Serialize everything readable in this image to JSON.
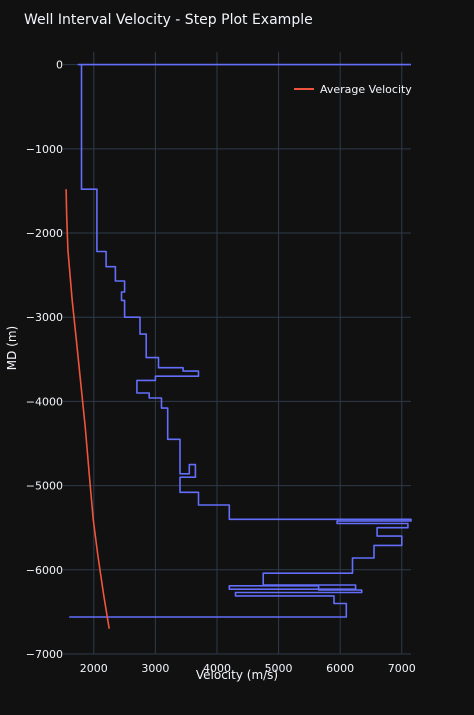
{
  "chart_data": {
    "type": "line",
    "title": "Well Interval Velocity - Step Plot Example",
    "xlabel": "Velocity (m/s)",
    "ylabel": "MD (m)",
    "xlim": [
      1500,
      7150
    ],
    "ylim": [
      -7000,
      150
    ],
    "x_ticks": [
      2000,
      3000,
      4000,
      5000,
      6000,
      7000
    ],
    "y_ticks": [
      0,
      -1000,
      -2000,
      -3000,
      -4000,
      -5000,
      -6000,
      -7000
    ],
    "x_tick_labels": [
      "2000",
      "3000",
      "4000",
      "5000",
      "6000",
      "7000"
    ],
    "y_tick_labels": [
      "0",
      "−1000",
      "−2000",
      "−3000",
      "−4000",
      "−5000",
      "−6000",
      "−7000"
    ],
    "grid": true,
    "legend_position": "top-right",
    "background": "#111111",
    "grid_color": "#2e3a4a",
    "series": [
      {
        "name": "",
        "color": "#636efa",
        "shape": "step",
        "points": [
          [
            7150,
            0
          ],
          [
            1750,
            0
          ],
          [
            1800,
            0
          ],
          [
            1800,
            -1480
          ],
          [
            2050,
            -1480
          ],
          [
            2050,
            -2220
          ],
          [
            2200,
            -2220
          ],
          [
            2200,
            -2400
          ],
          [
            2350,
            -2400
          ],
          [
            2350,
            -2570
          ],
          [
            2500,
            -2570
          ],
          [
            2500,
            -2700
          ],
          [
            2450,
            -2700
          ],
          [
            2450,
            -2800
          ],
          [
            2500,
            -2800
          ],
          [
            2500,
            -3000
          ],
          [
            2750,
            -3000
          ],
          [
            2750,
            -3200
          ],
          [
            2850,
            -3200
          ],
          [
            2850,
            -3480
          ],
          [
            3050,
            -3480
          ],
          [
            3050,
            -3600
          ],
          [
            3450,
            -3600
          ],
          [
            3450,
            -3640
          ],
          [
            3700,
            -3640
          ],
          [
            3700,
            -3700
          ],
          [
            3000,
            -3700
          ],
          [
            3000,
            -3750
          ],
          [
            2700,
            -3750
          ],
          [
            2700,
            -3900
          ],
          [
            2900,
            -3900
          ],
          [
            2900,
            -3960
          ],
          [
            3100,
            -3960
          ],
          [
            3100,
            -4080
          ],
          [
            3200,
            -4080
          ],
          [
            3200,
            -4450
          ],
          [
            3400,
            -4450
          ],
          [
            3400,
            -4860
          ],
          [
            3550,
            -4860
          ],
          [
            3550,
            -4750
          ],
          [
            3650,
            -4750
          ],
          [
            3650,
            -4900
          ],
          [
            3400,
            -4900
          ],
          [
            3400,
            -5080
          ],
          [
            3700,
            -5080
          ],
          [
            3700,
            -5230
          ],
          [
            4200,
            -5230
          ],
          [
            4200,
            -5400
          ],
          [
            7150,
            -5400
          ],
          [
            7150,
            -5420
          ],
          [
            5950,
            -5420
          ],
          [
            5950,
            -5450
          ],
          [
            7100,
            -5450
          ],
          [
            7100,
            -5500
          ],
          [
            6600,
            -5500
          ],
          [
            6600,
            -5600
          ],
          [
            7000,
            -5600
          ],
          [
            7000,
            -5710
          ],
          [
            6550,
            -5710
          ],
          [
            6550,
            -5860
          ],
          [
            6200,
            -5860
          ],
          [
            6200,
            -6040
          ],
          [
            4750,
            -6040
          ],
          [
            4750,
            -6180
          ],
          [
            6250,
            -6180
          ],
          [
            6250,
            -6230
          ],
          [
            4200,
            -6230
          ],
          [
            4200,
            -6190
          ],
          [
            5650,
            -6190
          ],
          [
            5650,
            -6240
          ],
          [
            6350,
            -6240
          ],
          [
            6350,
            -6270
          ],
          [
            4300,
            -6270
          ],
          [
            4300,
            -6310
          ],
          [
            5900,
            -6310
          ],
          [
            5900,
            -6400
          ],
          [
            6100,
            -6400
          ],
          [
            6100,
            -6560
          ],
          [
            1600,
            -6560
          ]
        ]
      },
      {
        "name": "Average Velocity",
        "color": "#ef553b",
        "shape": "line",
        "points": [
          [
            1550,
            -1480
          ],
          [
            1560,
            -1800
          ],
          [
            1580,
            -2200
          ],
          [
            1650,
            -2800
          ],
          [
            1720,
            -3300
          ],
          [
            1790,
            -3800
          ],
          [
            1860,
            -4300
          ],
          [
            1930,
            -4900
          ],
          [
            1990,
            -5400
          ],
          [
            2070,
            -5850
          ],
          [
            2160,
            -6300
          ],
          [
            2250,
            -6700
          ]
        ]
      }
    ]
  }
}
